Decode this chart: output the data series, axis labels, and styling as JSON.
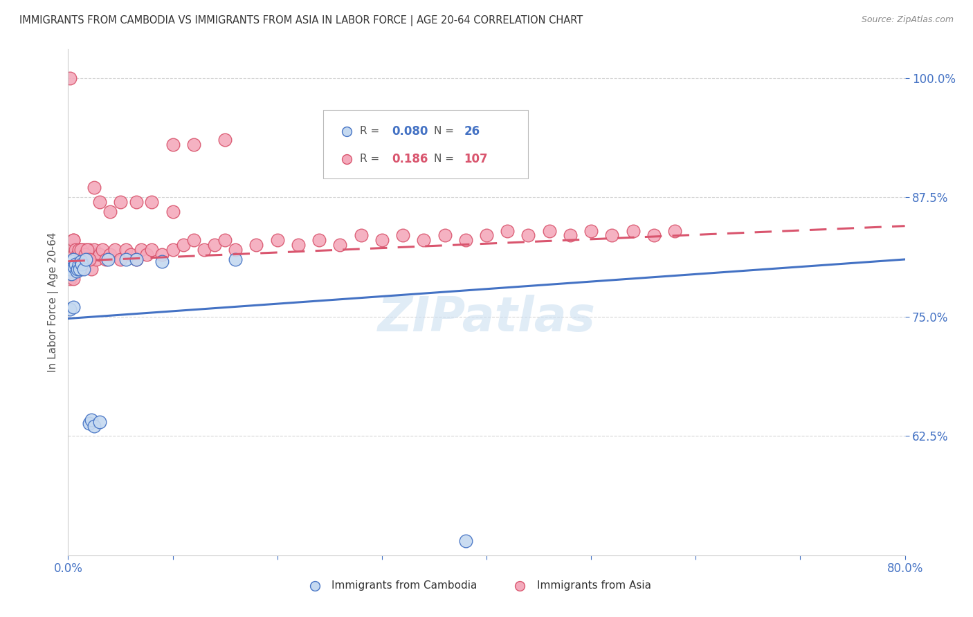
{
  "title": "IMMIGRANTS FROM CAMBODIA VS IMMIGRANTS FROM ASIA IN LABOR FORCE | AGE 20-64 CORRELATION CHART",
  "source": "Source: ZipAtlas.com",
  "ylabel": "In Labor Force | Age 20-64",
  "xlim": [
    0.0,
    0.8
  ],
  "ylim": [
    0.5,
    1.03
  ],
  "ytick_positions": [
    0.625,
    0.75,
    0.875,
    1.0
  ],
  "ytick_labels": [
    "62.5%",
    "75.0%",
    "87.5%",
    "100.0%"
  ],
  "legend_r_cambodia": "0.080",
  "legend_n_cambodia": "26",
  "legend_r_asia": "0.186",
  "legend_n_asia": "107",
  "color_cambodia_fill": "#c5d9f0",
  "color_cambodia_edge": "#4472c4",
  "color_asia_fill": "#f4aabc",
  "color_asia_edge": "#d9556e",
  "color_cambodia_line": "#4472c4",
  "color_asia_line": "#d9556e",
  "watermark": "ZIPatlas",
  "cam_x": [
    0.002,
    0.003,
    0.004,
    0.005,
    0.006,
    0.007,
    0.008,
    0.009,
    0.01,
    0.011,
    0.012,
    0.013,
    0.015,
    0.017,
    0.02,
    0.022,
    0.025,
    0.03,
    0.038,
    0.055,
    0.065,
    0.09,
    0.16,
    0.38,
    0.002,
    0.005
  ],
  "cam_y": [
    0.8,
    0.795,
    0.808,
    0.81,
    0.802,
    0.805,
    0.798,
    0.8,
    0.805,
    0.8,
    0.808,
    0.805,
    0.8,
    0.81,
    0.638,
    0.642,
    0.635,
    0.64,
    0.81,
    0.81,
    0.81,
    0.808,
    0.81,
    0.515,
    0.758,
    0.76
  ],
  "asia_x": [
    0.001,
    0.002,
    0.002,
    0.003,
    0.003,
    0.004,
    0.004,
    0.005,
    0.005,
    0.006,
    0.006,
    0.007,
    0.007,
    0.008,
    0.008,
    0.009,
    0.009,
    0.01,
    0.01,
    0.011,
    0.011,
    0.012,
    0.012,
    0.013,
    0.014,
    0.015,
    0.016,
    0.017,
    0.018,
    0.019,
    0.02,
    0.021,
    0.022,
    0.023,
    0.025,
    0.027,
    0.03,
    0.033,
    0.036,
    0.04,
    0.045,
    0.05,
    0.055,
    0.06,
    0.065,
    0.07,
    0.075,
    0.08,
    0.09,
    0.1,
    0.11,
    0.12,
    0.13,
    0.14,
    0.15,
    0.16,
    0.18,
    0.2,
    0.22,
    0.24,
    0.26,
    0.28,
    0.3,
    0.32,
    0.34,
    0.36,
    0.38,
    0.4,
    0.42,
    0.44,
    0.46,
    0.48,
    0.5,
    0.52,
    0.54,
    0.56,
    0.58,
    0.002,
    0.003,
    0.004,
    0.005,
    0.006,
    0.1,
    0.12,
    0.15,
    0.002,
    0.003,
    0.004,
    0.005,
    0.006,
    0.007,
    0.008,
    0.009,
    0.01,
    0.011,
    0.012,
    0.014,
    0.016,
    0.018,
    0.02,
    0.025,
    0.03,
    0.04,
    0.05,
    0.065,
    0.08,
    0.1
  ],
  "asia_y": [
    0.81,
    0.82,
    0.8,
    0.81,
    0.825,
    0.81,
    0.8,
    0.815,
    0.83,
    0.81,
    0.82,
    0.815,
    0.8,
    0.81,
    0.82,
    0.815,
    0.8,
    0.81,
    0.815,
    0.82,
    0.81,
    0.8,
    0.815,
    0.81,
    0.82,
    0.815,
    0.81,
    0.82,
    0.81,
    0.815,
    0.82,
    0.81,
    0.8,
    0.815,
    0.82,
    0.81,
    0.815,
    0.82,
    0.81,
    0.815,
    0.82,
    0.81,
    0.82,
    0.815,
    0.81,
    0.82,
    0.815,
    0.82,
    0.815,
    0.82,
    0.825,
    0.83,
    0.82,
    0.825,
    0.83,
    0.82,
    0.825,
    0.83,
    0.825,
    0.83,
    0.825,
    0.835,
    0.83,
    0.835,
    0.83,
    0.835,
    0.83,
    0.835,
    0.84,
    0.835,
    0.84,
    0.835,
    0.84,
    0.835,
    0.84,
    0.835,
    0.84,
    0.79,
    0.8,
    0.795,
    0.79,
    0.8,
    0.93,
    0.93,
    0.935,
    1.0,
    0.81,
    0.82,
    0.83,
    0.815,
    0.82,
    0.81,
    0.815,
    0.82,
    0.81,
    0.82,
    0.81,
    0.815,
    0.82,
    0.81,
    0.885,
    0.87,
    0.86,
    0.87,
    0.87,
    0.87,
    0.86
  ]
}
